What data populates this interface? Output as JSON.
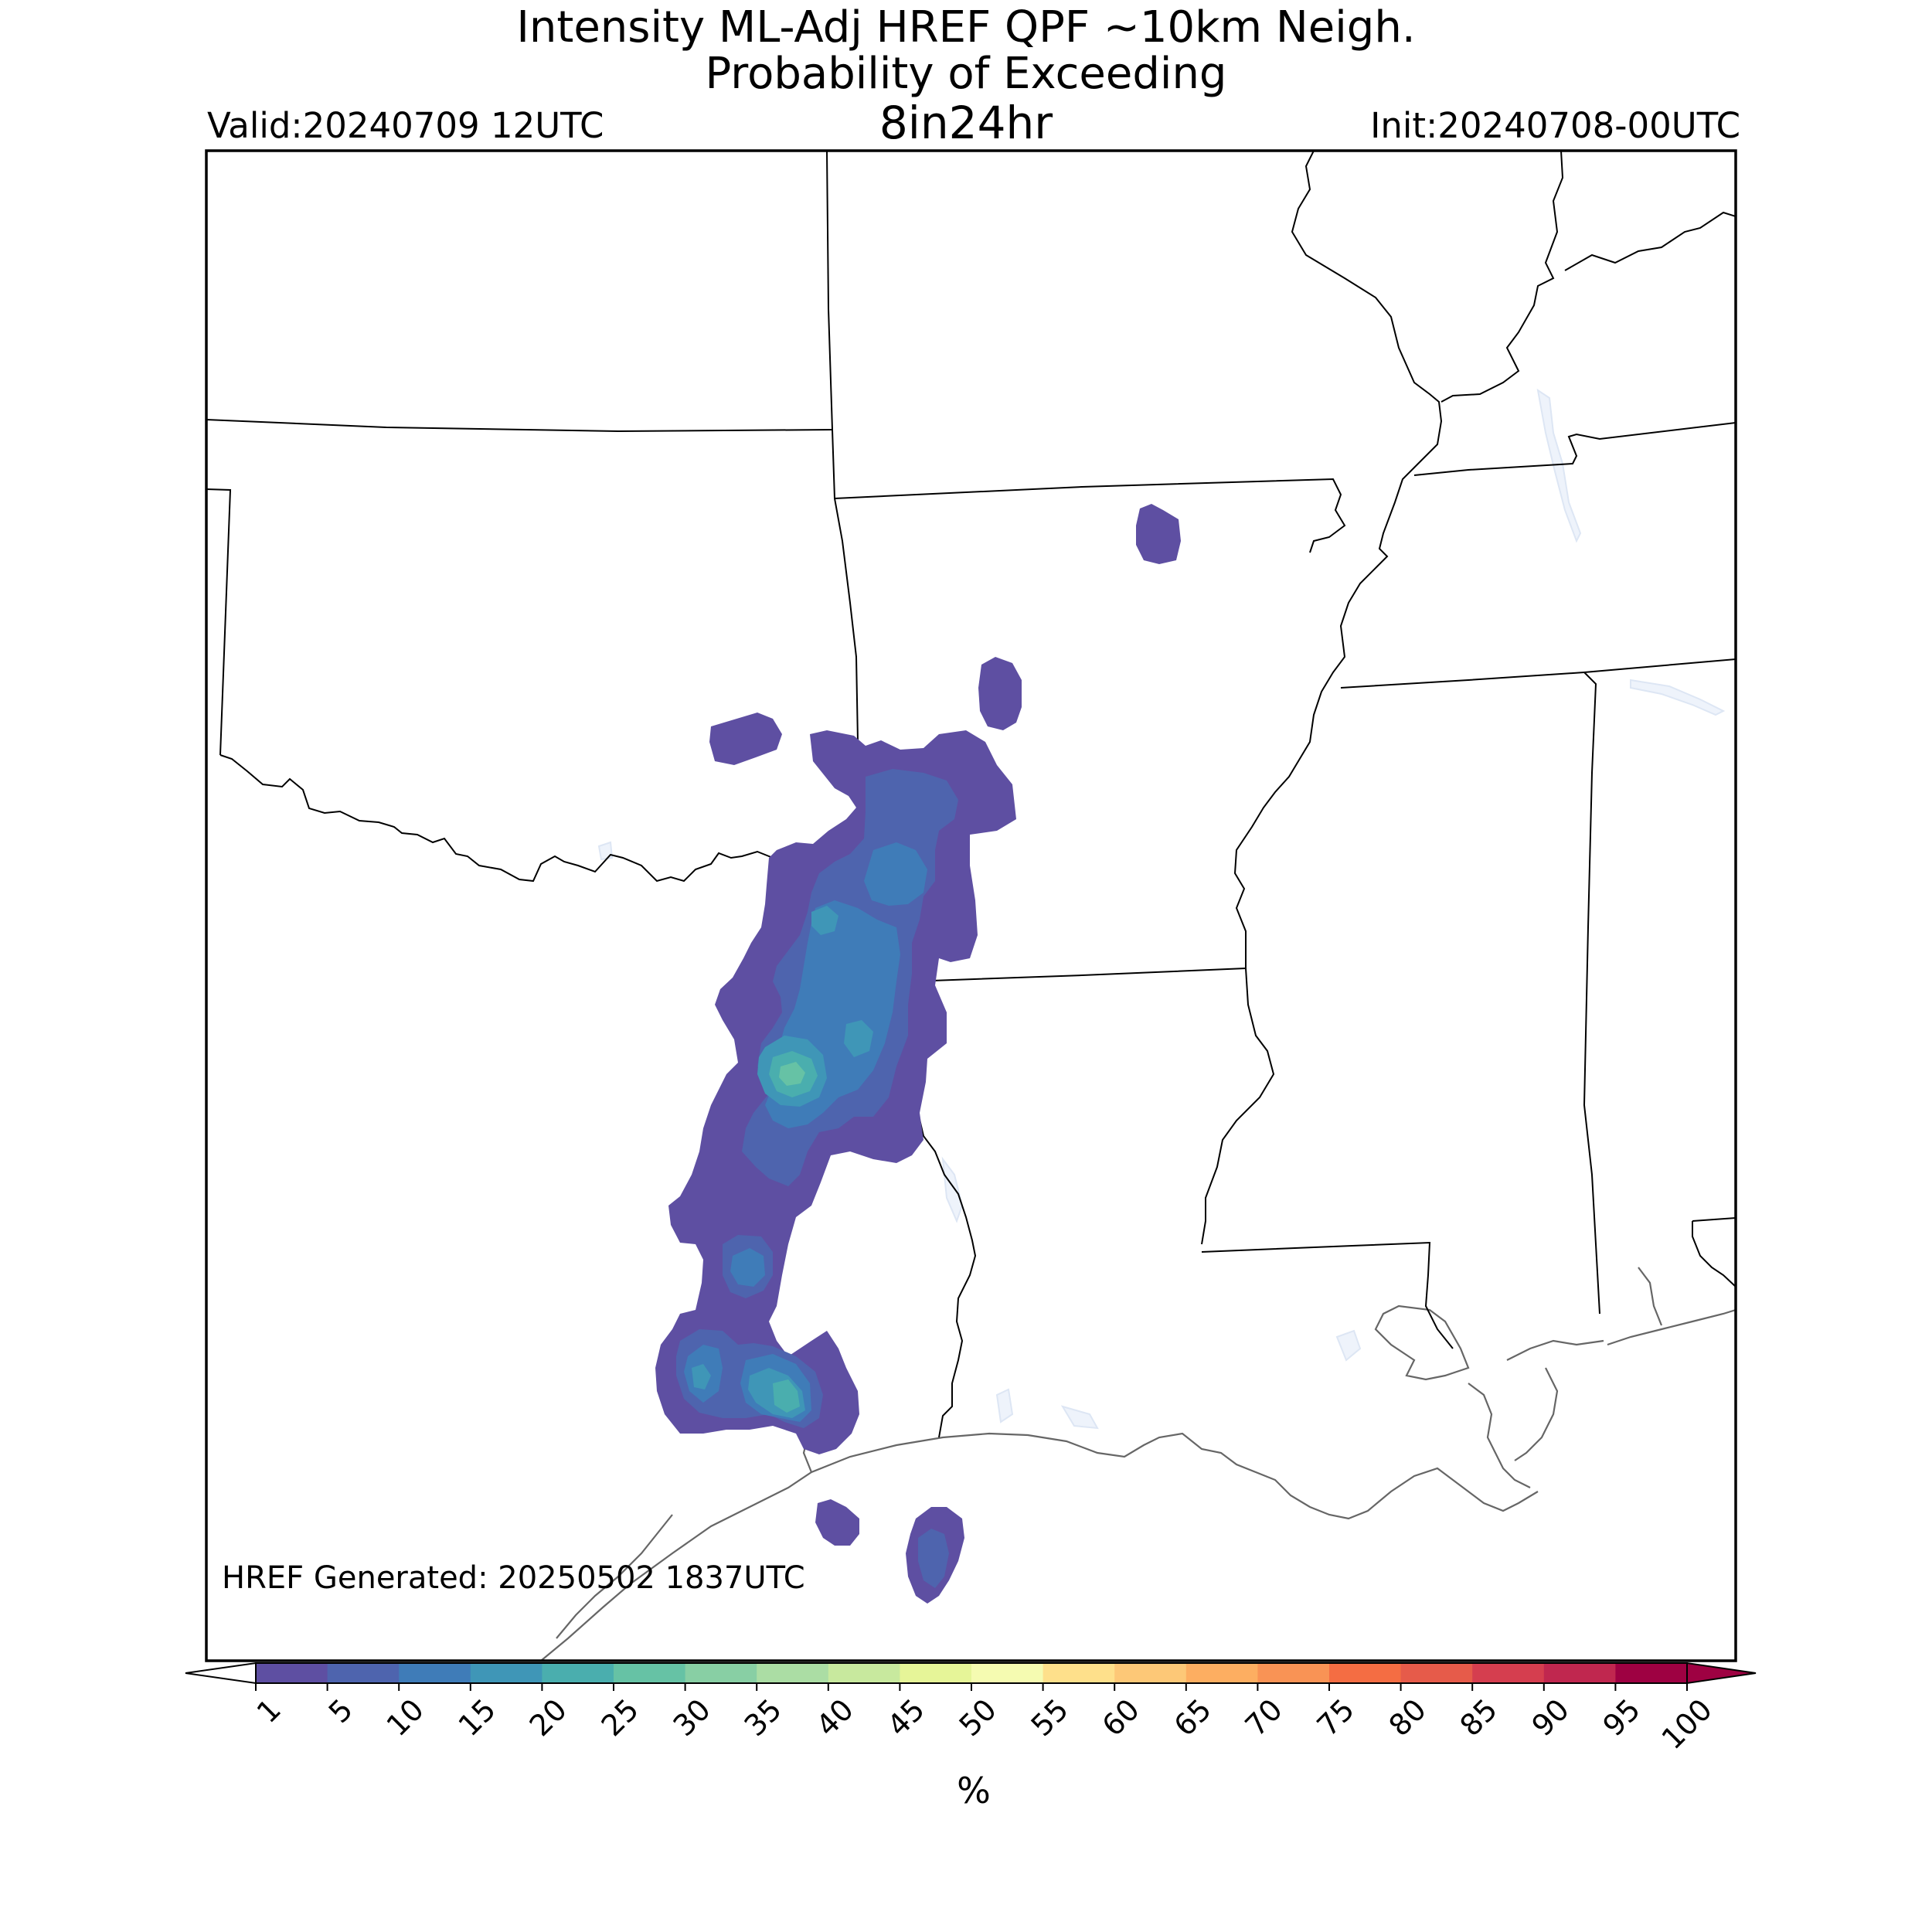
{
  "title": {
    "line1": "Intensity ML-Adj HREF QPF ~10km Neigh.",
    "line2": "Probability of Exceeding",
    "line3": "8in24hr"
  },
  "valid": "Valid:20240709 12UTC",
  "init": "Init:20240708-00UTC",
  "generated": "HREF Generated: 20250502 1837UTC",
  "colorbar": {
    "unit": "%",
    "levels": [
      1,
      5,
      10,
      15,
      20,
      25,
      30,
      35,
      40,
      45,
      50,
      55,
      60,
      65,
      70,
      75,
      80,
      85,
      90,
      95,
      100
    ],
    "colors": [
      "#5e4fa2",
      "#4e64ae",
      "#3f7cb8",
      "#3f96b7",
      "#4aaeae",
      "#66c2a5",
      "#88cfa4",
      "#abdda4",
      "#c8e99e",
      "#e6f598",
      "#f5fbb1",
      "#fee08b",
      "#fdc877",
      "#fdae61",
      "#f99355",
      "#f46d43",
      "#e65b4a",
      "#d53e4f",
      "#c0274f",
      "#9e0142"
    ],
    "under_color": "#ffffff",
    "over_color": "#9e0142"
  },
  "colors": {
    "state_border": "#000000",
    "coastline": "#666666",
    "water": "#eef3fb"
  }
}
